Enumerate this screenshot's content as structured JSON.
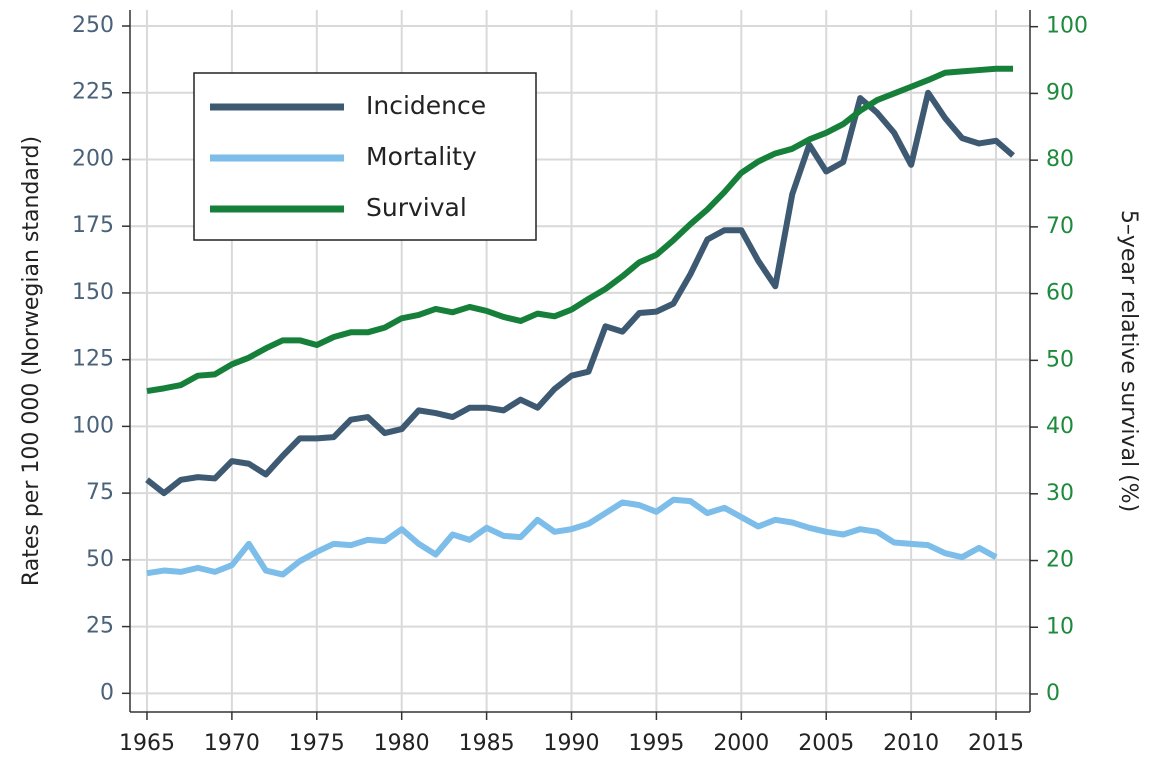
{
  "chart_data": {
    "type": "line",
    "x": [
      1965,
      1966,
      1967,
      1968,
      1969,
      1970,
      1971,
      1972,
      1973,
      1974,
      1975,
      1976,
      1977,
      1978,
      1979,
      1980,
      1981,
      1982,
      1983,
      1984,
      1985,
      1986,
      1987,
      1988,
      1989,
      1990,
      1991,
      1992,
      1993,
      1994,
      1995,
      1996,
      1997,
      1998,
      1999,
      2000,
      2001,
      2002,
      2003,
      2004,
      2005,
      2006,
      2007,
      2008,
      2009,
      2010,
      2011,
      2012,
      2013,
      2014,
      2015,
      2016
    ],
    "series": [
      {
        "name": "Incidence",
        "color": "#3e5a72",
        "values": [
          80,
          75,
          80,
          81,
          80.5,
          87,
          86,
          82,
          89,
          95.5,
          95.5,
          96,
          102.5,
          103.5,
          97.5,
          99,
          106,
          105,
          103.5,
          107,
          107,
          106,
          110,
          107,
          114,
          119,
          120.5,
          137.5,
          135.5,
          142.5,
          143,
          146,
          157,
          170,
          173.5,
          173.5,
          162,
          152.5,
          187,
          205.5,
          195.5,
          199,
          223,
          217.5,
          210,
          198,
          225,
          215.5,
          208,
          206,
          207,
          201.5
        ]
      },
      {
        "name": "Mortality",
        "color": "#7dbde9",
        "values": [
          45,
          46,
          45.5,
          47,
          45.5,
          48,
          56,
          46,
          44.5,
          49.5,
          53,
          56,
          55.5,
          57.5,
          57,
          61.5,
          56,
          52,
          59.5,
          57.5,
          62,
          59,
          58.5,
          65,
          60.5,
          61.5,
          63.5,
          67.5,
          71.5,
          70.5,
          68,
          72.5,
          72,
          67.5,
          69.5,
          66,
          62.5,
          65,
          64,
          62,
          60.5,
          59.5,
          61.5,
          60.5,
          56.5,
          56,
          55.5,
          52.5,
          51,
          54.5,
          51,
          null
        ]
      },
      {
        "name": "Survival",
        "color": "#16803a",
        "axis": "y2",
        "values": [
          45.4,
          45.8,
          46.3,
          47.7,
          47.9,
          49.4,
          50.4,
          51.8,
          53,
          53,
          52.3,
          53.5,
          54.2,
          54.2,
          54.9,
          56.3,
          56.8,
          57.7,
          57.2,
          58,
          57.4,
          56.5,
          55.9,
          57,
          56.6,
          57.6,
          59.2,
          60.7,
          62.6,
          64.7,
          65.8,
          68,
          70.4,
          72.6,
          75.2,
          78.1,
          79.8,
          81,
          81.7,
          83.1,
          84.1,
          85.4,
          87.4,
          89,
          90,
          91,
          92,
          93.1,
          93.3,
          93.5,
          93.7,
          93.7
        ]
      }
    ],
    "y_label": "Rates per 100 000 (Norwegian standard)",
    "y2_label": "5–year relative survival (%)",
    "xlim": [
      1964,
      2017
    ],
    "xticks": [
      1965,
      1970,
      1975,
      1980,
      1985,
      1990,
      1995,
      2000,
      2005,
      2010,
      2015
    ],
    "ylim": [
      -7,
      256
    ],
    "yticks": [
      0,
      25,
      50,
      75,
      100,
      125,
      150,
      175,
      200,
      225,
      250
    ],
    "y2lim": [
      -2.7,
      102.5
    ],
    "y2ticks": [
      0,
      10,
      20,
      30,
      40,
      50,
      60,
      70,
      80,
      90,
      100
    ],
    "grid": true,
    "legend": "upper left"
  }
}
